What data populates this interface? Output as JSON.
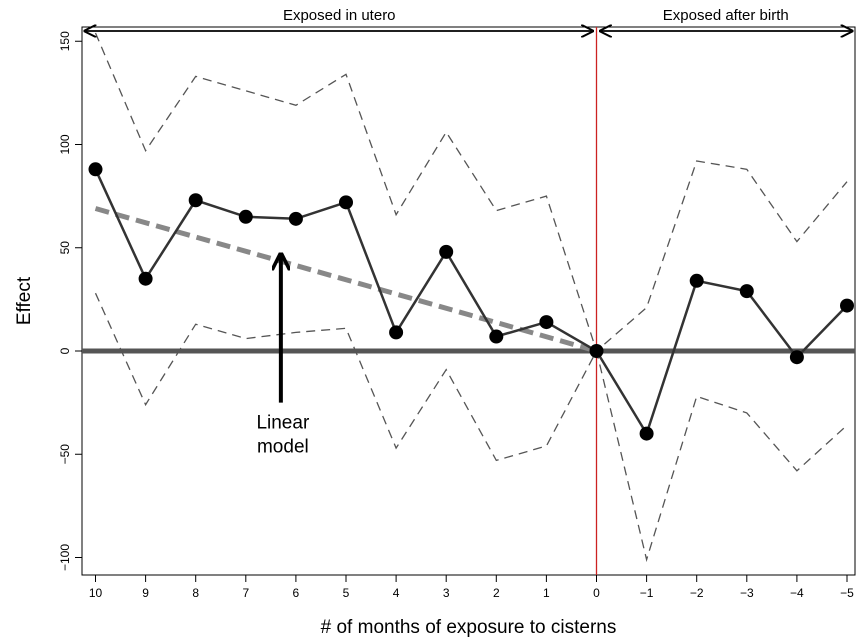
{
  "chart_data": {
    "type": "line",
    "title": "",
    "xlabel": "# of months of exposure to cisterns",
    "ylabel": "Effect",
    "x_tick_labels": [
      "10",
      "9",
      "8",
      "7",
      "6",
      "5",
      "4",
      "3",
      "2",
      "1",
      "0",
      "−1",
      "−2",
      "−3",
      "−4",
      "−5"
    ],
    "y_ticks": [
      -100,
      -50,
      0,
      50,
      100,
      150
    ],
    "y_tick_labels": [
      "−100",
      "−50",
      "0",
      "50",
      "100",
      "150"
    ],
    "ylim": [
      -108,
      157
    ],
    "months": [
      10,
      9,
      8,
      7,
      6,
      5,
      4,
      3,
      2,
      1,
      0,
      -1,
      -2,
      -3,
      -4,
      -5
    ],
    "series": [
      {
        "role": "estimate",
        "values": [
          88,
          35,
          73,
          65,
          64,
          72,
          9,
          48,
          7,
          14,
          0,
          -40,
          34,
          29,
          -3,
          22
        ]
      },
      {
        "role": "upper",
        "values": [
          154,
          97,
          133,
          126,
          119,
          134,
          66,
          106,
          68,
          75,
          0,
          21,
          92,
          88,
          53,
          82
        ]
      },
      {
        "role": "lower",
        "values": [
          28,
          -26,
          13,
          6,
          9,
          11,
          -47,
          -9,
          -53,
          -46,
          0,
          -101,
          -22,
          -30,
          -58,
          -36
        ]
      }
    ],
    "linear_model": {
      "from": [
        10,
        69
      ],
      "to": [
        0,
        0
      ]
    },
    "baseline_y": 0,
    "divider_x": 0,
    "regions": [
      {
        "label": "Exposed in utero"
      },
      {
        "label": "Exposed after birth"
      }
    ],
    "annotation": {
      "lines": [
        "Linear",
        "model"
      ],
      "arrow_tip": [
        6.3,
        46
      ]
    },
    "colors": {
      "estimate": "#333333",
      "ci": "#555555",
      "linear_model": "#888888",
      "baseline": "#555555",
      "divider": "#cc2222",
      "points": "#000000"
    }
  }
}
